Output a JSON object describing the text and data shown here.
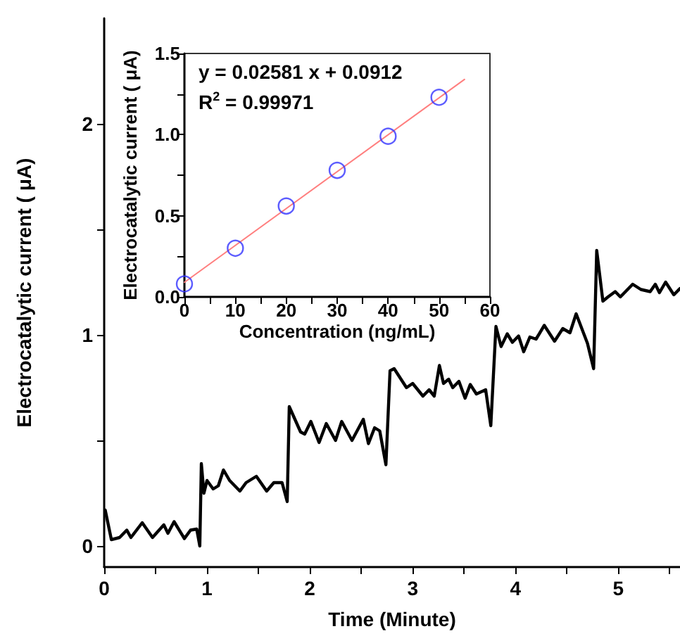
{
  "chart_data": [
    {
      "type": "line",
      "xlabel": "Time (Minute)",
      "ylabel": "Electrocatalytic current ( μA)",
      "xlim": [
        0,
        5.6
      ],
      "ylim": [
        -0.1,
        2.5
      ],
      "xticks": [
        0,
        {
          "value": 0.5,
          "label": null
        },
        1,
        {
          "value": 1.5,
          "label": null
        },
        2,
        {
          "value": 2.5,
          "label": null
        },
        3,
        {
          "value": 3.5,
          "label": null
        },
        4,
        {
          "value": 4.5,
          "label": null
        },
        5,
        {
          "value": 5.5,
          "label": null
        }
      ],
      "yticks": [
        0,
        {
          "value": 0.5,
          "label": null
        },
        1,
        {
          "value": 1.5,
          "label": null
        },
        2
      ],
      "grid": false,
      "marker": "none",
      "line_style": "solid",
      "series": [
        {
          "color": "#000000",
          "x": [
            0.01,
            0.07,
            0.15,
            0.22,
            0.26,
            0.37,
            0.47,
            0.58,
            0.62,
            0.68,
            0.78,
            0.84,
            0.9,
            0.93,
            0.945,
            0.97,
            1.0,
            1.06,
            1.11,
            1.16,
            1.22,
            1.32,
            1.38,
            1.48,
            1.58,
            1.65,
            1.73,
            1.78,
            1.8,
            1.91,
            1.95,
            2.01,
            2.09,
            2.16,
            2.25,
            2.31,
            2.41,
            2.52,
            2.57,
            2.63,
            2.68,
            2.74,
            2.78,
            2.82,
            2.94,
            3.0,
            3.1,
            3.16,
            3.21,
            3.26,
            3.3,
            3.35,
            3.39,
            3.45,
            3.51,
            3.56,
            3.62,
            3.71,
            3.76,
            3.81,
            3.86,
            3.92,
            3.97,
            4.03,
            4.08,
            4.14,
            4.2,
            4.28,
            4.38,
            4.46,
            4.53,
            4.59,
            4.7,
            4.76,
            4.79,
            4.85,
            4.9,
            4.97,
            5.02,
            5.14,
            5.22,
            5.31,
            5.36,
            5.4,
            5.46,
            5.54,
            5.6
          ],
          "values": [
            0.17,
            0.03,
            0.04,
            0.075,
            0.04,
            0.11,
            0.04,
            0.1,
            0.06,
            0.115,
            0.035,
            0.075,
            0.08,
            0.0,
            0.39,
            0.25,
            0.31,
            0.27,
            0.285,
            0.36,
            0.31,
            0.26,
            0.3,
            0.33,
            0.26,
            0.3,
            0.3,
            0.21,
            0.66,
            0.54,
            0.53,
            0.59,
            0.49,
            0.58,
            0.5,
            0.59,
            0.5,
            0.6,
            0.485,
            0.56,
            0.545,
            0.385,
            0.83,
            0.84,
            0.75,
            0.77,
            0.71,
            0.74,
            0.71,
            0.855,
            0.77,
            0.79,
            0.75,
            0.78,
            0.7,
            0.765,
            0.72,
            0.74,
            0.57,
            1.04,
            0.945,
            1.005,
            0.965,
            0.995,
            0.92,
            0.99,
            0.98,
            1.045,
            0.97,
            1.03,
            1.01,
            1.1,
            0.96,
            0.84,
            1.4,
            1.16,
            1.18,
            1.205,
            1.18,
            1.24,
            1.215,
            1.205,
            1.24,
            1.2,
            1.25,
            1.19,
            1.22
          ]
        }
      ]
    },
    {
      "type": "scatter",
      "xlabel": "Concentration (ng/mL)",
      "ylabel": "Electrocatalytic current ( μA)",
      "xlim": [
        0,
        60
      ],
      "ylim": [
        0,
        1.5
      ],
      "xticks": [
        0,
        {
          "value": 5,
          "label": null
        },
        10,
        {
          "value": 15,
          "label": null
        },
        20,
        {
          "value": 25,
          "label": null
        },
        30,
        {
          "value": 35,
          "label": null
        },
        40,
        {
          "value": 45,
          "label": null
        },
        50,
        {
          "value": 55,
          "label": null
        },
        60
      ],
      "yticks": [
        {
          "value": 0,
          "label": "0.0"
        },
        {
          "value": 0.25,
          "label": null
        },
        0.5,
        {
          "value": 0.75,
          "label": null
        },
        {
          "value": 1,
          "label": "1.0"
        },
        {
          "value": 1.25,
          "label": null
        },
        1.5
      ],
      "grid": false,
      "marker": "circle",
      "annotations": [
        "y = 0.02581 x + 0.0912",
        "R$^{2}$ = 0.99971"
      ],
      "series": [
        {
          "color": "#3333ff",
          "x": [
            0,
            10,
            20,
            30,
            40,
            50
          ],
          "values": [
            0.08,
            0.3,
            0.56,
            0.78,
            0.99,
            1.23
          ]
        },
        {
          "type": "line",
          "marker": "none",
          "color": "#ff7f7f",
          "x": [
            0,
            55
          ],
          "values": [
            0.09,
            1.34
          ]
        }
      ]
    }
  ]
}
